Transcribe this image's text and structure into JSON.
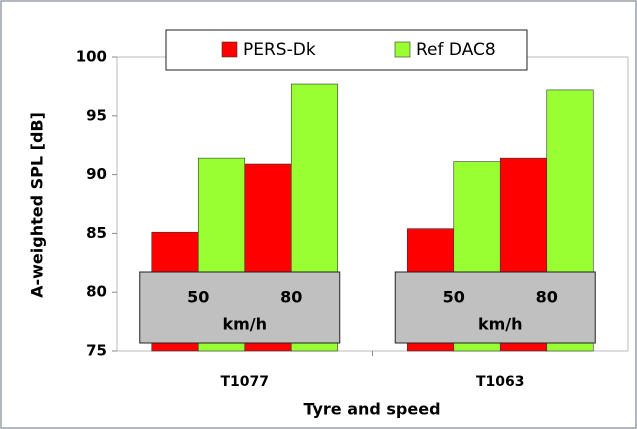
{
  "chart_data": {
    "type": "bar",
    "xlabel": "Tyre and speed",
    "ylabel": "A-weighted SPL [dB]",
    "groups": [
      "T1077",
      "T1063"
    ],
    "categories": [
      "50",
      "80",
      "50",
      "80"
    ],
    "unit": "km/h",
    "series": [
      {
        "name": "PERS-Dk",
        "color": "#ff0000",
        "values": [
          85.1,
          90.9,
          85.4,
          91.4
        ]
      },
      {
        "name": "Ref DAC8",
        "color": "#99ff33",
        "values": [
          91.4,
          97.7,
          91.1,
          97.2
        ]
      }
    ],
    "ylim": [
      75,
      100
    ],
    "yticks": [
      75,
      80,
      85,
      90,
      95,
      100
    ],
    "grid": false,
    "legend": "top"
  }
}
